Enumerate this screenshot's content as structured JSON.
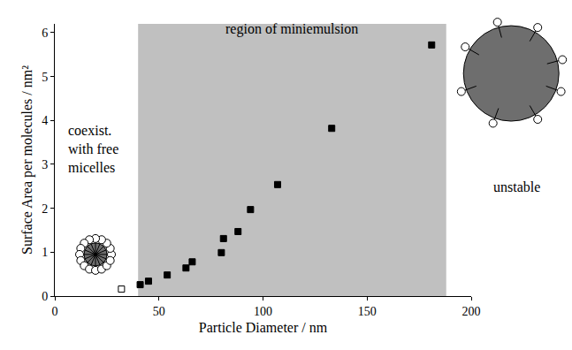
{
  "chart_data": {
    "type": "scatter",
    "x_label": "Particle Diameter / nm",
    "y_label": "Surface Area per molecules / nm²",
    "xlim": [
      0,
      200
    ],
    "xticks": [
      0,
      50,
      100,
      150,
      200
    ],
    "ylim": [
      0,
      6.2
    ],
    "yticks": [
      0,
      1,
      2,
      3,
      4,
      5,
      6
    ],
    "grid": false,
    "series": [
      {
        "marker": "square",
        "color": "#000000",
        "x": [
          41,
          45,
          54,
          63,
          66,
          80,
          81,
          88,
          94,
          107,
          133,
          181
        ],
        "values": [
          0.26,
          0.34,
          0.48,
          0.64,
          0.78,
          0.99,
          1.31,
          1.47,
          1.97,
          2.54,
          3.82,
          5.72
        ]
      },
      {
        "marker": "square-open",
        "color": "#000000",
        "x": [
          32
        ],
        "values": [
          0.16
        ]
      }
    ],
    "regions": [
      {
        "x": [
          40,
          188
        ],
        "color": "#c0c0c0",
        "label": "region of miniemulsion"
      }
    ],
    "annotations": [
      {
        "text": [
          "coexist.",
          "with free",
          "micelles"
        ]
      },
      {
        "text": "unstable"
      }
    ]
  }
}
